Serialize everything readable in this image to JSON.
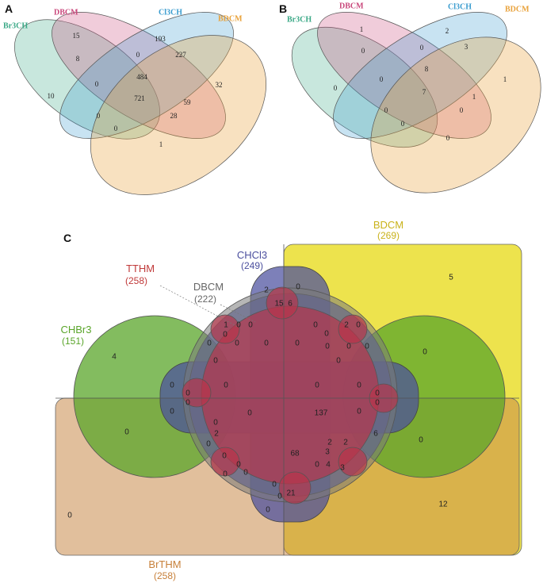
{
  "panels": [
    {
      "letter": "A",
      "sets": [
        {
          "name": "Br3CH",
          "color": "#3aa886"
        },
        {
          "name": "DBCM",
          "color": "#c9477b"
        },
        {
          "name": "Cl3CH",
          "color": "#3a9ccf"
        },
        {
          "name": "BDCM",
          "color": "#e9a23b"
        }
      ],
      "counts": [
        "15",
        "193",
        "8",
        "0",
        "227",
        "484",
        "32",
        "10",
        "0",
        "721",
        "59",
        "0",
        "28",
        "0",
        "1"
      ]
    },
    {
      "letter": "B",
      "sets": [
        {
          "name": "Br3CH",
          "color": "#3aa886"
        },
        {
          "name": "DBCM",
          "color": "#c9477b"
        },
        {
          "name": "Cl3CH",
          "color": "#3a9ccf"
        },
        {
          "name": "BDCM",
          "color": "#e9a23b"
        }
      ],
      "counts": [
        "1",
        "2",
        "0",
        "0",
        "3",
        "8",
        "1",
        "0",
        "0",
        "7",
        "1",
        "0",
        "0",
        "0",
        "0"
      ]
    }
  ],
  "panel_c": {
    "letter": "C",
    "sets": [
      {
        "name": "BDCM",
        "count": "(269)",
        "color": "#c9b21a"
      },
      {
        "name": "CHCl3",
        "count": "(249)",
        "color": "#4b4f9e"
      },
      {
        "name": "TTHM",
        "count": "(258)",
        "color": "#c03a3a"
      },
      {
        "name": "DBCM",
        "count": "(222)",
        "color": "#666666"
      },
      {
        "name": "CHBr3",
        "count": "(151)",
        "color": "#5aa52a"
      },
      {
        "name": "BrTHM",
        "count": "(258)",
        "color": "#c7803a"
      }
    ],
    "counts": [
      "2",
      "0",
      "15",
      "6",
      "1",
      "0",
      "0",
      "0",
      "2",
      "0",
      "0",
      "0",
      "4",
      "0",
      "0",
      "0",
      "0",
      "0",
      "0",
      "0",
      "0",
      "0",
      "0",
      "0",
      "0",
      "5",
      "0",
      "0",
      "0",
      "0",
      "0",
      "0",
      "0",
      "137",
      "0",
      "0",
      "0",
      "0",
      "0",
      "0",
      "2",
      "2",
      "6",
      "68",
      "3",
      "0",
      "0",
      "4",
      "3",
      "0",
      "2",
      "0",
      "0",
      "0",
      "0",
      "21",
      "0",
      "0",
      "12"
    ]
  }
}
